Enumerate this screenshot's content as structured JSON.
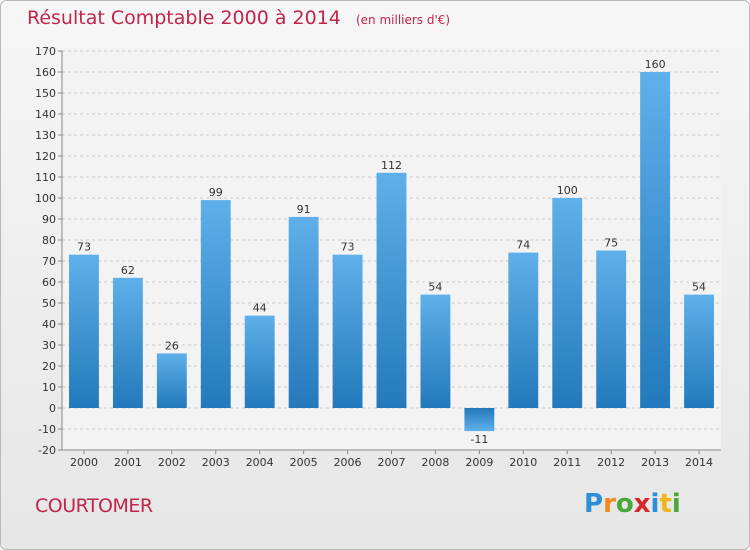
{
  "title": "Résultat Comptable 2000 à 2014",
  "subtitle": "(en milliers d'€)",
  "footer_name": "COURTOMER",
  "logo": {
    "letters": [
      {
        "char": "P",
        "color": "#2a8fd6"
      },
      {
        "char": "r",
        "color": "#f08a1c"
      },
      {
        "char": "o",
        "color": "#4aa83a"
      },
      {
        "char": "x",
        "color": "#d62828"
      },
      {
        "char": "i",
        "color": "#2a8fd6"
      },
      {
        "char": "t",
        "color": "#f0b41c"
      },
      {
        "char": "i",
        "color": "#4aa83a"
      }
    ]
  },
  "colors": {
    "accent": "#c0254a",
    "bar_top": "#5fb0ea",
    "bar_bottom": "#2379bb",
    "grid": "#c8c8c8"
  },
  "chart_data": {
    "type": "bar",
    "title": "Résultat Comptable 2000 à 2014",
    "subtitle": "(en milliers d'€)",
    "categories": [
      "2000",
      "2001",
      "2002",
      "2003",
      "2004",
      "2005",
      "2006",
      "2007",
      "2008",
      "2009",
      "2010",
      "2011",
      "2012",
      "2013",
      "2014"
    ],
    "values": [
      73,
      62,
      26,
      99,
      44,
      91,
      73,
      112,
      54,
      -11,
      74,
      100,
      75,
      160,
      54
    ],
    "data_labels": [
      "73",
      "62",
      "26",
      "99",
      "44",
      "91",
      "73",
      "112",
      "54",
      "-11",
      "74",
      "100",
      "75",
      "160",
      "54"
    ],
    "ylim": [
      -20,
      170
    ],
    "yticks": [
      -20,
      -10,
      0,
      10,
      20,
      30,
      40,
      50,
      60,
      70,
      80,
      90,
      100,
      110,
      120,
      130,
      140,
      150,
      160,
      170
    ],
    "xlabel": "",
    "ylabel": "",
    "grid": true,
    "legend": false
  }
}
